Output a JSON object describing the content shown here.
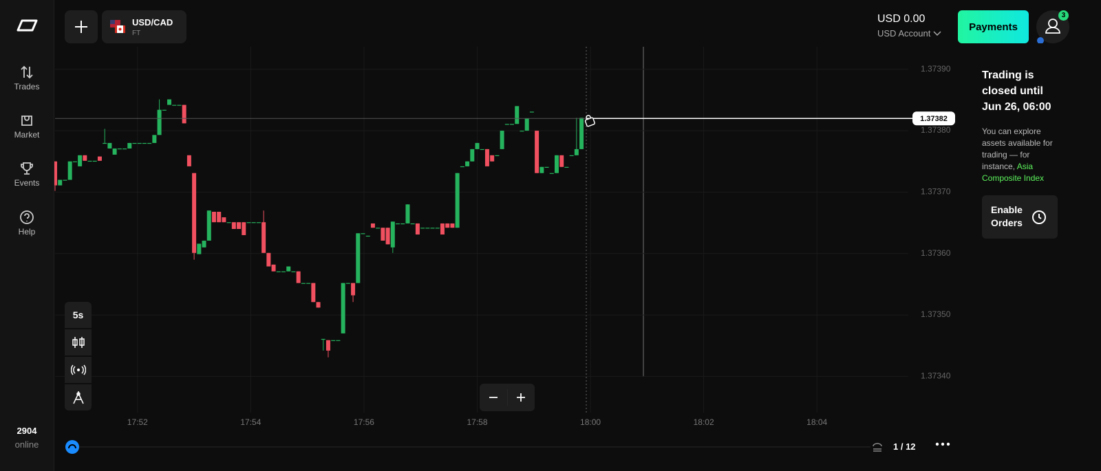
{
  "sidebar": {
    "items": [
      "Trades",
      "Market",
      "Events",
      "Help"
    ],
    "online_count": 2904,
    "online_label": "online"
  },
  "header": {
    "asset": "USD/CAD",
    "asset_type": "FT",
    "balance": "USD 0.00",
    "account": "USD Account",
    "payments": "Payments",
    "notifications": 3
  },
  "panel": {
    "title": "Trading is closed until Jun 26, 06:00",
    "text": "You can explore assets available for trading — for instance,",
    "link": "Asia Composite Index",
    "button": "Enable Orders"
  },
  "toolbar": {
    "timeframe": "5s"
  },
  "pagination": "1 / 12",
  "chart_data": {
    "type": "candlestick",
    "up_color": "#26b35e",
    "down_color": "#f0505f",
    "grid": true,
    "current_price": 1.37382,
    "ylim": [
      1.37334,
      1.37394
    ],
    "yticks": [
      {
        "value": 1.3739,
        "label": "1.37390"
      },
      {
        "value": 1.3738,
        "label": "1.37380"
      },
      {
        "value": 1.3737,
        "label": "1.37370"
      },
      {
        "value": 1.3736,
        "label": "1.37360"
      },
      {
        "value": 1.3735,
        "label": "1.37350"
      },
      {
        "value": 1.3734,
        "label": "1.37340"
      }
    ],
    "xlim": [
      0,
      171.8
    ],
    "xticks": [
      {
        "value": 16.6,
        "label": "17:52"
      },
      {
        "value": 39.4,
        "label": "17:54"
      },
      {
        "value": 62.2,
        "label": "17:56"
      },
      {
        "value": 85.0,
        "label": "17:58"
      },
      {
        "value": 107.8,
        "label": "18:00"
      },
      {
        "value": 130.6,
        "label": "18:02"
      },
      {
        "value": 153.4,
        "label": "18:04"
      }
    ],
    "open": [
      1.37375,
      1.373711,
      1.37372,
      1.37372,
      1.37375,
      1.373742,
      1.37376,
      1.373751,
      1.373751,
      1.373758,
      1.37378,
      1.373771,
      1.373761,
      1.373771,
      1.373771,
      1.373771,
      1.37378,
      1.37378,
      1.37378,
      1.37378,
      1.37378,
      1.373793,
      1.373834,
      1.373842,
      1.373842,
      1.373842,
      1.373842,
      1.37376,
      1.373731,
      1.373599,
      1.37361,
      1.373621,
      1.373668,
      1.373668,
      1.373659,
      1.373651,
      1.373651,
      1.373651,
      1.373651,
      1.373651,
      1.373651,
      1.373651,
      1.373651,
      1.373601,
      1.373582,
      1.373571,
      1.373571,
      1.373571,
      1.373571,
      1.373571,
      1.373552,
      1.373552,
      1.373552,
      1.373521,
      1.373461,
      1.373459,
      1.373459,
      1.373459,
      1.37347,
      1.373552,
      1.373552,
      1.373552,
      1.373633,
      1.373629,
      1.373649,
      1.373642,
      1.373642,
      1.373642,
      1.37361,
      1.373649,
      1.373649,
      1.373649,
      1.373649,
      1.373649,
      1.373642,
      1.373642,
      1.373642,
      1.373642,
      1.373649,
      1.373649,
      1.373649,
      1.373642,
      1.373742,
      1.373742,
      1.37375,
      1.37377,
      1.37377,
      1.37377,
      1.37376,
      1.37376,
      1.37377,
      1.373811,
      1.373811,
      1.373811,
      1.3738,
      1.3738,
      1.373831,
      1.3738,
      1.373731,
      1.373741,
      1.373731,
      1.373731,
      1.37376,
      1.373741,
      1.37376,
      1.37376,
      1.37377
    ],
    "high": [
      1.37375,
      1.37372,
      1.37372,
      1.37375,
      1.37375,
      1.37376,
      1.37376,
      1.373751,
      1.373751,
      1.373758,
      1.373803,
      1.37378,
      1.373771,
      1.373771,
      1.373771,
      1.37378,
      1.37378,
      1.37378,
      1.37378,
      1.37378,
      1.373793,
      1.373851,
      1.373834,
      1.373851,
      1.373842,
      1.373842,
      1.373842,
      1.37376,
      1.373731,
      1.373616,
      1.373621,
      1.37367,
      1.373668,
      1.373668,
      1.373659,
      1.373651,
      1.373651,
      1.373651,
      1.373651,
      1.373651,
      1.373651,
      1.373651,
      1.37367,
      1.373601,
      1.373582,
      1.373571,
      1.373571,
      1.373579,
      1.373571,
      1.373571,
      1.373552,
      1.373552,
      1.373552,
      1.373521,
      1.373461,
      1.373459,
      1.373459,
      1.373459,
      1.373552,
      1.373552,
      1.373552,
      1.373633,
      1.373633,
      1.373629,
      1.373649,
      1.373642,
      1.373642,
      1.373642,
      1.373652,
      1.373649,
      1.373649,
      1.37368,
      1.373649,
      1.373649,
      1.373642,
      1.373642,
      1.373642,
      1.373642,
      1.373649,
      1.373649,
      1.373649,
      1.373731,
      1.373742,
      1.37375,
      1.37377,
      1.37378,
      1.37377,
      1.37377,
      1.37376,
      1.37376,
      1.3738,
      1.373811,
      1.373811,
      1.37384,
      1.3738,
      1.37382,
      1.373831,
      1.3738,
      1.373741,
      1.373741,
      1.373731,
      1.37376,
      1.37376,
      1.373741,
      1.37376,
      1.373821,
      1.373821
    ],
    "low": [
      1.373702,
      1.373711,
      1.37372,
      1.37372,
      1.37375,
      1.373742,
      1.373751,
      1.373751,
      1.373751,
      1.373751,
      1.37378,
      1.373771,
      1.373761,
      1.373771,
      1.373771,
      1.373771,
      1.37378,
      1.37378,
      1.37378,
      1.37378,
      1.37378,
      1.373793,
      1.373834,
      1.373842,
      1.373842,
      1.373842,
      1.373812,
      1.373742,
      1.37359,
      1.373599,
      1.37361,
      1.373621,
      1.373651,
      1.373651,
      1.373651,
      1.373651,
      1.37364,
      1.37364,
      1.37363,
      1.373651,
      1.373651,
      1.373651,
      1.373601,
      1.373579,
      1.373571,
      1.373571,
      1.373571,
      1.373571,
      1.373571,
      1.373552,
      1.373552,
      1.373552,
      1.373521,
      1.373512,
      1.373442,
      1.373431,
      1.373459,
      1.373459,
      1.37347,
      1.373552,
      1.373521,
      1.373552,
      1.373633,
      1.373629,
      1.373642,
      1.373642,
      1.373621,
      1.373615,
      1.373601,
      1.373649,
      1.373649,
      1.373649,
      1.373649,
      1.373631,
      1.373642,
      1.373642,
      1.373642,
      1.373642,
      1.373631,
      1.373642,
      1.373642,
      1.373642,
      1.373742,
      1.373742,
      1.37375,
      1.37377,
      1.37377,
      1.373742,
      1.37375,
      1.37376,
      1.37377,
      1.373811,
      1.373811,
      1.373811,
      1.3738,
      1.3738,
      1.373831,
      1.373731,
      1.373731,
      1.373741,
      1.373731,
      1.373731,
      1.373741,
      1.373741,
      1.37376,
      1.37376,
      1.37377
    ],
    "close": [
      1.373711,
      1.37372,
      1.37372,
      1.37375,
      1.37375,
      1.37376,
      1.373751,
      1.373751,
      1.373751,
      1.373751,
      1.37378,
      1.37378,
      1.373771,
      1.373771,
      1.373771,
      1.37378,
      1.37378,
      1.37378,
      1.37378,
      1.37378,
      1.373793,
      1.373834,
      1.373834,
      1.373851,
      1.373842,
      1.373842,
      1.373812,
      1.373742,
      1.373601,
      1.373616,
      1.373621,
      1.37367,
      1.373651,
      1.373651,
      1.373651,
      1.373651,
      1.37364,
      1.37364,
      1.37363,
      1.373651,
      1.373651,
      1.373651,
      1.373601,
      1.373579,
      1.373571,
      1.373571,
      1.373571,
      1.373579,
      1.373571,
      1.373552,
      1.373552,
      1.373552,
      1.373521,
      1.373512,
      1.373461,
      1.373442,
      1.373459,
      1.373459,
      1.373552,
      1.373552,
      1.373532,
      1.373633,
      1.373633,
      1.373629,
      1.373642,
      1.373642,
      1.373621,
      1.373615,
      1.373652,
      1.373649,
      1.373649,
      1.37368,
      1.373649,
      1.373631,
      1.373642,
      1.373642,
      1.373642,
      1.373642,
      1.373631,
      1.373642,
      1.373642,
      1.373731,
      1.373742,
      1.37375,
      1.37377,
      1.37378,
      1.37377,
      1.373742,
      1.37375,
      1.37376,
      1.3738,
      1.373811,
      1.373811,
      1.37384,
      1.3738,
      1.37382,
      1.373831,
      1.373731,
      1.373741,
      1.373741,
      1.373731,
      1.37376,
      1.373741,
      1.373741,
      1.37376,
      1.37377,
      1.373821
    ]
  }
}
